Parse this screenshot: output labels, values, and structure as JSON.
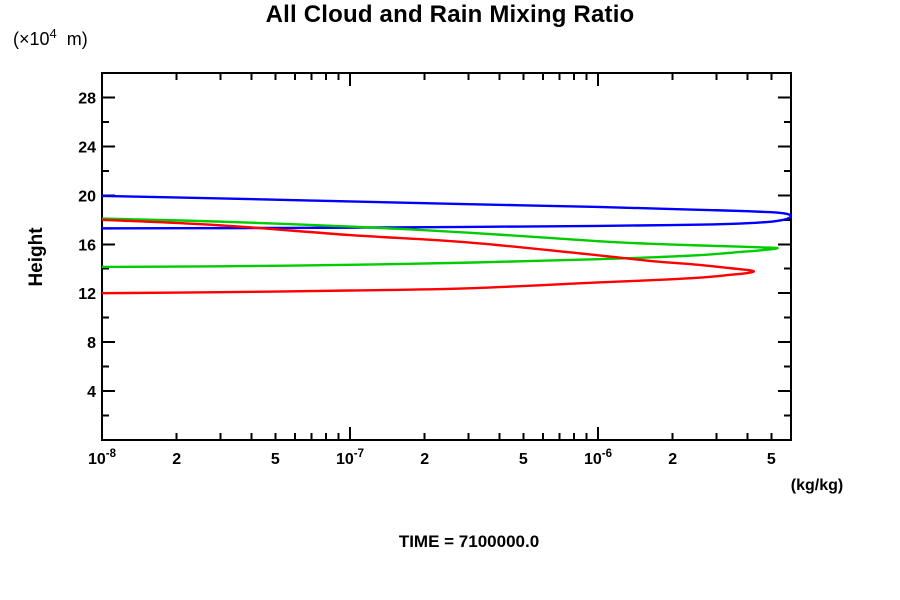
{
  "labels": {
    "title": "All Cloud and Rain Mixing Ratio",
    "y_axis_unit_prefix": "(×10",
    "y_axis_unit_exponent": "4",
    "y_axis_unit_suffix": "  m)",
    "y_axis_label": "Height",
    "x_axis_unit": "(kg/kg)",
    "time_caption": "TIME = 7100000.0"
  },
  "chart_data": {
    "type": "line",
    "title": "All Cloud and Rain Mixing Ratio",
    "xlabel_unit": "(kg/kg)",
    "ylabel": "Height",
    "y_unit": "(×10^4 m)",
    "x_scale": "log",
    "x_range": [
      1e-08,
      6e-06
    ],
    "y_range": [
      0,
      30
    ],
    "grid": false,
    "legend": "none",
    "x_ticks": [
      {
        "v": 1e-08,
        "base": "10",
        "exp": "-8"
      },
      {
        "v": 2e-08,
        "label": "2"
      },
      {
        "v": 5e-08,
        "label": "5"
      },
      {
        "v": 1e-07,
        "base": "10",
        "exp": "-7"
      },
      {
        "v": 2e-07,
        "label": "2"
      },
      {
        "v": 5e-07,
        "label": "5"
      },
      {
        "v": 1e-06,
        "base": "10",
        "exp": "-6"
      },
      {
        "v": 2e-06,
        "label": "2"
      },
      {
        "v": 5e-06,
        "label": "5"
      }
    ],
    "y_tick_labels": [
      4,
      8,
      12,
      16,
      20,
      24,
      28
    ],
    "y_minor_step": 2,
    "series": [
      {
        "name": "blue-profile",
        "color": "#0000ff",
        "points": [
          [
            1e-08,
            19.95
          ],
          [
            3e-08,
            19.75
          ],
          [
            1e-07,
            19.5
          ],
          [
            3e-07,
            19.28
          ],
          [
            1e-06,
            19.05
          ],
          [
            2e-06,
            18.88
          ],
          [
            3e-06,
            18.78
          ],
          [
            4e-06,
            18.7
          ],
          [
            5e-06,
            18.62
          ],
          [
            5.5e-06,
            18.55
          ],
          [
            5.85e-06,
            18.45
          ],
          [
            6e-06,
            18.3
          ],
          [
            5.85e-06,
            18.12
          ],
          [
            5.5e-06,
            17.97
          ],
          [
            5e-06,
            17.85
          ],
          [
            4e-06,
            17.72
          ],
          [
            3e-06,
            17.63
          ],
          [
            2e-06,
            17.57
          ],
          [
            1e-06,
            17.5
          ],
          [
            3e-07,
            17.42
          ],
          [
            1e-07,
            17.36
          ],
          [
            3e-08,
            17.32
          ],
          [
            1e-08,
            17.3
          ]
        ]
      },
      {
        "name": "green-profile",
        "color": "#00cc00",
        "points": [
          [
            1e-08,
            18.1
          ],
          [
            3e-08,
            17.85
          ],
          [
            1e-07,
            17.45
          ],
          [
            3e-07,
            16.95
          ],
          [
            1e-06,
            16.25
          ],
          [
            1.6e-06,
            16.05
          ],
          [
            2.6e-06,
            15.9
          ],
          [
            3.8e-06,
            15.8
          ],
          [
            4.6e-06,
            15.74
          ],
          [
            5.3e-06,
            15.68
          ],
          [
            4.6e-06,
            15.52
          ],
          [
            3.8e-06,
            15.38
          ],
          [
            2.6e-06,
            15.12
          ],
          [
            1.6e-06,
            14.92
          ],
          [
            1e-06,
            14.78
          ],
          [
            3e-07,
            14.5
          ],
          [
            1e-07,
            14.32
          ],
          [
            3e-08,
            14.2
          ],
          [
            1e-08,
            14.15
          ]
        ]
      },
      {
        "name": "red-profile",
        "color": "#ff0000",
        "points": [
          [
            1e-08,
            18.0
          ],
          [
            3e-08,
            17.55
          ],
          [
            1e-07,
            16.75
          ],
          [
            3e-07,
            16.15
          ],
          [
            1e-06,
            15.1
          ],
          [
            1.6e-06,
            14.65
          ],
          [
            2.6e-06,
            14.3
          ],
          [
            3.4e-06,
            14.05
          ],
          [
            4e-06,
            13.9
          ],
          [
            4.25e-06,
            13.78
          ],
          [
            4e-06,
            13.65
          ],
          [
            3.4e-06,
            13.5
          ],
          [
            2.6e-06,
            13.28
          ],
          [
            1.6e-06,
            13.05
          ],
          [
            1e-06,
            12.88
          ],
          [
            3e-07,
            12.4
          ],
          [
            1e-07,
            12.22
          ],
          [
            3e-08,
            12.08
          ],
          [
            1e-08,
            12.0
          ]
        ]
      }
    ]
  }
}
